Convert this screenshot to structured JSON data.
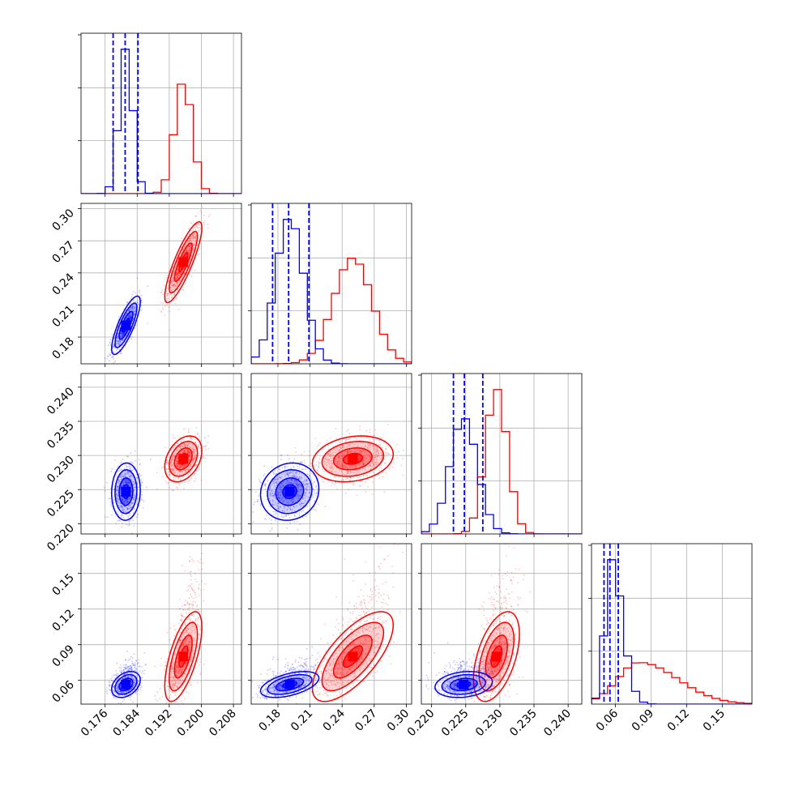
{
  "colors": {
    "blue": "#0000ff",
    "red": "#ff0000",
    "grid": "#b0b0b0"
  },
  "chart_data": {
    "type": "corner",
    "grid": true,
    "parameters": [
      {
        "range": [
          0.17,
          0.21
        ],
        "ticks": [
          "0.176",
          "0.184",
          "0.192",
          "0.200",
          "0.208"
        ]
      },
      {
        "range": [
          0.155,
          0.305
        ],
        "ticks": [
          "0.18",
          "0.21",
          "0.24",
          "0.27",
          "0.30"
        ]
      },
      {
        "range": [
          0.2185,
          0.242
        ],
        "ticks": [
          "0.220",
          "0.225",
          "0.230",
          "0.235",
          "0.240"
        ]
      },
      {
        "range": [
          0.04,
          0.175
        ],
        "ticks": [
          "0.06",
          "0.09",
          "0.12",
          "0.15"
        ]
      }
    ],
    "series": [
      {
        "color": "red",
        "mean": [
          0.1955,
          0.25,
          0.2295,
          0.08
        ],
        "std": [
          0.0022,
          0.018,
          0.0016,
          0.018
        ],
        "quantiles": null
      },
      {
        "color": "blue",
        "mean": [
          0.1812,
          0.191,
          0.2247,
          0.0565
        ],
        "std": [
          0.0017,
          0.013,
          0.002,
          0.0052
        ],
        "quantiles": [
          [
            0.178,
            0.181,
            0.1842
          ],
          [
            0.175,
            0.19,
            0.209
          ],
          [
            0.2232,
            0.2248,
            0.2275
          ],
          [
            0.0505,
            0.0555,
            0.0625
          ]
        ]
      }
    ],
    "correlations": {
      "red": {
        "0-1": 0.85,
        "0-2": 0.35,
        "0-3": 0.65,
        "1-2": 0.2,
        "1-3": 0.7,
        "2-3": 0.5
      },
      "blue": {
        "0-1": 0.8,
        "0-2": 0.05,
        "0-3": 0.35,
        "1-2": 0.1,
        "1-3": 0.5,
        "2-3": 0.2
      }
    }
  }
}
